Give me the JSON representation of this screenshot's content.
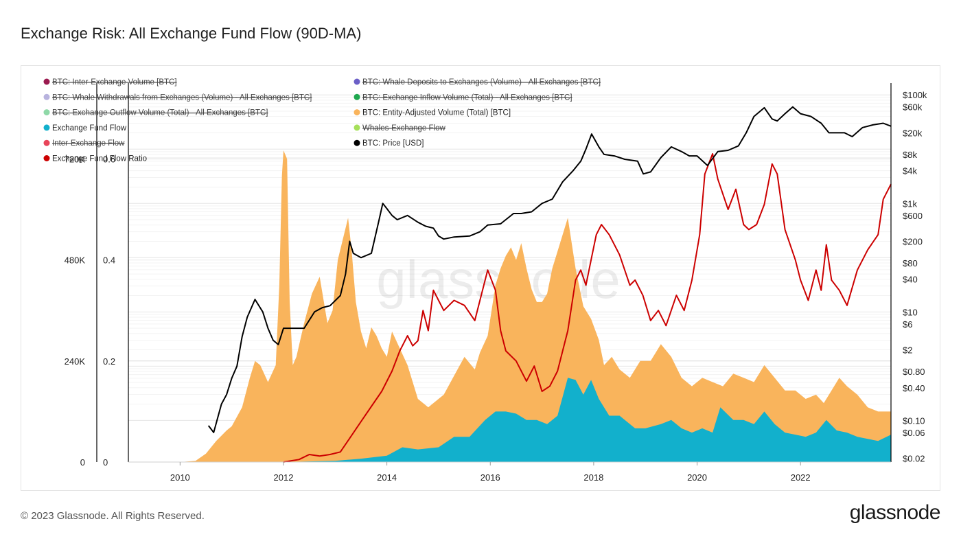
{
  "page": {
    "title": "Exchange Risk: All Exchange Fund Flow (90D-MA)",
    "copyright": "© 2023 Glassnode. All Rights Reserved.",
    "brand": "glassnode",
    "watermark": "glassnode"
  },
  "chart_data": {
    "type": "area",
    "title": "Exchange Risk: All Exchange Fund Flow (90D-MA)",
    "x_ticks": [
      "2010",
      "2012",
      "2014",
      "2016",
      "2018",
      "2020",
      "2022"
    ],
    "x_range": [
      2009.0,
      2023.75
    ],
    "left_axis": {
      "range": [
        0,
        900000
      ],
      "ticks": [
        0,
        240000,
        480000,
        720000
      ],
      "tick_labels": [
        "0",
        "240K",
        "480K",
        "720K"
      ]
    },
    "ratio_axis": {
      "range": [
        0,
        0.75
      ],
      "ticks": [
        0,
        0.2,
        0.4,
        0.6
      ],
      "tick_labels": [
        "0",
        "0.2",
        "0.4",
        "0.6"
      ]
    },
    "price_axis": {
      "scale": "log",
      "range": [
        0.0171,
        165000
      ],
      "ticks": [
        0.02,
        0.06,
        0.1,
        0.4,
        0.8,
        2,
        6,
        10,
        40,
        80,
        200,
        600,
        1000,
        4000,
        8000,
        20000,
        60000,
        100000
      ],
      "tick_labels": [
        "$0.02",
        "$0.06",
        "$0.10",
        "$0.40",
        "$0.80",
        "$2",
        "$6",
        "$10",
        "$40",
        "$80",
        "$200",
        "$600",
        "$1k",
        "$4k",
        "$8k",
        "$20k",
        "$60k",
        "$100k"
      ]
    },
    "legend": [
      {
        "label": "BTC: Inter-Exchange Volume [BTC]",
        "color": "#9b1a4f",
        "active": false
      },
      {
        "label": "BTC: Whale Deposits to Exchanges (Volume) - All Exchanges [BTC]",
        "color": "#6b5fc7",
        "active": false
      },
      {
        "label": "BTC: Whale Withdrawals from Exchanges (Volume) - All Exchanges [BTC]",
        "color": "#b8b3de",
        "active": false
      },
      {
        "label": "BTC: Exchange Inflow Volume (Total) - All Exchanges [BTC]",
        "color": "#1fa84f",
        "active": false
      },
      {
        "label": "BTC: Exchange Outflow Volume (Total) - All Exchanges [BTC]",
        "color": "#8fd9a8",
        "active": false
      },
      {
        "label": "BTC: Entity-Adjusted Volume (Total) [BTC]",
        "color": "#f9b45c",
        "active": true
      },
      {
        "label": "Exchange Fund Flow",
        "color": "#12b0cc",
        "active": true
      },
      {
        "label": "Whales-Exchange Flow",
        "color": "#a6e05a",
        "active": false
      },
      {
        "label": "Inter-Exchange Flow",
        "color": "#e8455a",
        "active": false
      },
      {
        "label": "BTC: Price [USD]",
        "color": "#000000",
        "active": true
      },
      {
        "label": "Exchange Fund Flow Ratio",
        "color": "#cc0000",
        "active": true
      }
    ],
    "series": [
      {
        "name": "BTC: Entity-Adjusted Volume (Total) [BTC]",
        "axis": "left",
        "style": "area",
        "color": "#f9b45c",
        "x": [
          2010.0,
          2010.3,
          2010.5,
          2010.7,
          2010.9,
          2011.0,
          2011.2,
          2011.35,
          2011.45,
          2011.55,
          2011.7,
          2011.85,
          2011.92,
          2011.97,
          2012.0,
          2012.07,
          2012.12,
          2012.18,
          2012.25,
          2012.4,
          2012.55,
          2012.7,
          2012.85,
          2012.95,
          2013.05,
          2013.15,
          2013.25,
          2013.32,
          2013.4,
          2013.5,
          2013.6,
          2013.7,
          2013.8,
          2013.9,
          2014.0,
          2014.1,
          2014.25,
          2014.4,
          2014.6,
          2014.8,
          2015.0,
          2015.1,
          2015.3,
          2015.5,
          2015.7,
          2015.8,
          2015.95,
          2016.1,
          2016.2,
          2016.3,
          2016.4,
          2016.5,
          2016.6,
          2016.7,
          2016.8,
          2016.9,
          2017.0,
          2017.1,
          2017.2,
          2017.35,
          2017.5,
          2017.65,
          2017.8,
          2017.95,
          2018.1,
          2018.2,
          2018.35,
          2018.5,
          2018.7,
          2018.9,
          2019.1,
          2019.3,
          2019.5,
          2019.7,
          2019.9,
          2020.1,
          2020.3,
          2020.5,
          2020.7,
          2020.9,
          2021.1,
          2021.3,
          2021.5,
          2021.7,
          2021.9,
          2022.1,
          2022.3,
          2022.45,
          2022.6,
          2022.75,
          2022.9,
          2023.1,
          2023.3,
          2023.5,
          2023.75
        ],
        "values": [
          0,
          3000,
          20000,
          50000,
          75000,
          85000,
          130000,
          200000,
          240000,
          230000,
          190000,
          230000,
          420000,
          680000,
          740000,
          720000,
          380000,
          230000,
          250000,
          330000,
          400000,
          440000,
          330000,
          360000,
          480000,
          530000,
          580000,
          500000,
          380000,
          310000,
          270000,
          320000,
          300000,
          270000,
          250000,
          310000,
          270000,
          230000,
          150000,
          130000,
          150000,
          160000,
          205000,
          250000,
          220000,
          260000,
          300000,
          420000,
          460000,
          490000,
          510000,
          480000,
          520000,
          460000,
          410000,
          380000,
          380000,
          400000,
          460000,
          520000,
          580000,
          460000,
          370000,
          340000,
          290000,
          230000,
          250000,
          220000,
          200000,
          240000,
          240000,
          280000,
          250000,
          200000,
          180000,
          200000,
          190000,
          180000,
          210000,
          200000,
          190000,
          230000,
          200000,
          170000,
          170000,
          150000,
          160000,
          140000,
          170000,
          200000,
          180000,
          160000,
          130000,
          120000,
          120000
        ]
      },
      {
        "name": "Exchange Fund Flow",
        "axis": "left",
        "style": "area",
        "color": "#12b0cc",
        "x": [
          2012.0,
          2013.0,
          2013.5,
          2014.0,
          2014.3,
          2014.6,
          2015.0,
          2015.3,
          2015.6,
          2015.9,
          2016.1,
          2016.3,
          2016.5,
          2016.7,
          2016.9,
          2017.1,
          2017.3,
          2017.5,
          2017.65,
          2017.8,
          2017.95,
          2018.1,
          2018.3,
          2018.5,
          2018.8,
          2019.0,
          2019.3,
          2019.5,
          2019.7,
          2019.9,
          2020.1,
          2020.3,
          2020.45,
          2020.7,
          2020.9,
          2021.1,
          2021.3,
          2021.5,
          2021.7,
          2021.9,
          2022.1,
          2022.3,
          2022.5,
          2022.7,
          2022.9,
          2023.1,
          2023.3,
          2023.5,
          2023.75
        ],
        "values": [
          0,
          3000,
          8000,
          15000,
          35000,
          30000,
          35000,
          60000,
          60000,
          100000,
          120000,
          120000,
          115000,
          100000,
          100000,
          90000,
          110000,
          200000,
          195000,
          160000,
          195000,
          150000,
          110000,
          110000,
          80000,
          80000,
          90000,
          100000,
          80000,
          70000,
          80000,
          70000,
          130000,
          100000,
          100000,
          90000,
          120000,
          90000,
          70000,
          65000,
          60000,
          70000,
          100000,
          75000,
          70000,
          60000,
          55000,
          50000,
          65000
        ]
      },
      {
        "name": "Exchange Fund Flow Ratio",
        "axis": "ratio",
        "style": "line",
        "color": "#cc0000",
        "x": [
          2012.0,
          2012.3,
          2012.5,
          2012.7,
          2012.9,
          2013.1,
          2013.3,
          2013.5,
          2013.7,
          2013.9,
          2014.1,
          2014.25,
          2014.4,
          2014.5,
          2014.6,
          2014.7,
          2014.8,
          2014.9,
          2015.0,
          2015.1,
          2015.3,
          2015.5,
          2015.7,
          2015.8,
          2015.95,
          2016.1,
          2016.2,
          2016.3,
          2016.5,
          2016.7,
          2016.85,
          2017.0,
          2017.15,
          2017.3,
          2017.5,
          2017.65,
          2017.75,
          2017.85,
          2017.95,
          2018.05,
          2018.15,
          2018.3,
          2018.5,
          2018.7,
          2018.8,
          2018.95,
          2019.1,
          2019.25,
          2019.4,
          2019.6,
          2019.75,
          2019.9,
          2020.05,
          2020.15,
          2020.3,
          2020.4,
          2020.5,
          2020.6,
          2020.75,
          2020.9,
          2021.0,
          2021.15,
          2021.3,
          2021.45,
          2021.55,
          2021.7,
          2021.9,
          2022.0,
          2022.15,
          2022.3,
          2022.4,
          2022.5,
          2022.6,
          2022.75,
          2022.9,
          2023.1,
          2023.3,
          2023.5,
          2023.6,
          2023.75
        ],
        "values": [
          0.0,
          0.005,
          0.015,
          0.012,
          0.015,
          0.02,
          0.05,
          0.08,
          0.11,
          0.14,
          0.18,
          0.22,
          0.25,
          0.23,
          0.24,
          0.3,
          0.26,
          0.34,
          0.32,
          0.3,
          0.32,
          0.31,
          0.28,
          0.32,
          0.38,
          0.34,
          0.26,
          0.22,
          0.2,
          0.16,
          0.19,
          0.14,
          0.15,
          0.18,
          0.26,
          0.36,
          0.38,
          0.35,
          0.4,
          0.45,
          0.47,
          0.45,
          0.41,
          0.35,
          0.36,
          0.33,
          0.28,
          0.3,
          0.27,
          0.33,
          0.3,
          0.36,
          0.45,
          0.57,
          0.61,
          0.56,
          0.53,
          0.5,
          0.54,
          0.47,
          0.46,
          0.47,
          0.51,
          0.59,
          0.57,
          0.46,
          0.4,
          0.36,
          0.32,
          0.38,
          0.34,
          0.43,
          0.36,
          0.34,
          0.31,
          0.38,
          0.42,
          0.45,
          0.52,
          0.55
        ]
      },
      {
        "name": "BTC: Price [USD]",
        "axis": "price",
        "style": "line",
        "color": "#000000",
        "x": [
          2010.55,
          2010.65,
          2010.8,
          2010.9,
          2011.0,
          2011.1,
          2011.2,
          2011.3,
          2011.45,
          2011.6,
          2011.7,
          2011.8,
          2011.9,
          2012.0,
          2012.2,
          2012.4,
          2012.6,
          2012.75,
          2012.9,
          2013.1,
          2013.2,
          2013.28,
          2013.35,
          2013.5,
          2013.7,
          2013.85,
          2013.92,
          2014.0,
          2014.1,
          2014.2,
          2014.4,
          2014.6,
          2014.75,
          2014.9,
          2015.0,
          2015.1,
          2015.3,
          2015.6,
          2015.8,
          2015.95,
          2016.2,
          2016.45,
          2016.6,
          2016.8,
          2017.0,
          2017.2,
          2017.4,
          2017.6,
          2017.75,
          2017.85,
          2017.96,
          2018.1,
          2018.2,
          2018.4,
          2018.6,
          2018.85,
          2018.96,
          2019.1,
          2019.3,
          2019.5,
          2019.7,
          2019.85,
          2020.0,
          2020.2,
          2020.4,
          2020.6,
          2020.8,
          2020.95,
          2021.1,
          2021.3,
          2021.45,
          2021.55,
          2021.7,
          2021.85,
          2022.0,
          2022.2,
          2022.4,
          2022.55,
          2022.7,
          2022.85,
          2023.0,
          2023.2,
          2023.4,
          2023.6,
          2023.75
        ],
        "values": [
          0.08,
          0.06,
          0.2,
          0.3,
          0.6,
          1.0,
          3.5,
          8.0,
          17.0,
          10.0,
          5.0,
          3.0,
          2.5,
          5.0,
          5.0,
          5.0,
          10.0,
          12.0,
          13.0,
          20.0,
          50.0,
          200.0,
          120.0,
          100.0,
          120.0,
          500.0,
          1000.0,
          800.0,
          600.0,
          500.0,
          600.0,
          450.0,
          380.0,
          350.0,
          250.0,
          220.0,
          240.0,
          250.0,
          300.0,
          400.0,
          420.0,
          650.0,
          650.0,
          700.0,
          1000.0,
          1200.0,
          2500.0,
          4000.0,
          6000.0,
          10000.0,
          19000.0,
          11000.0,
          8000.0,
          7500.0,
          6500.0,
          6000.0,
          3500.0,
          3800.0,
          7000.0,
          11000.0,
          9000.0,
          7500.0,
          7500.0,
          5000.0,
          9000.0,
          9500.0,
          11500.0,
          20000.0,
          40000.0,
          58000.0,
          36000.0,
          33000.0,
          45000.0,
          60000.0,
          45000.0,
          40000.0,
          30000.0,
          20000.0,
          20000.0,
          20000.0,
          17000.0,
          25000.0,
          28000.0,
          30000.0,
          26500.0
        ]
      }
    ]
  }
}
